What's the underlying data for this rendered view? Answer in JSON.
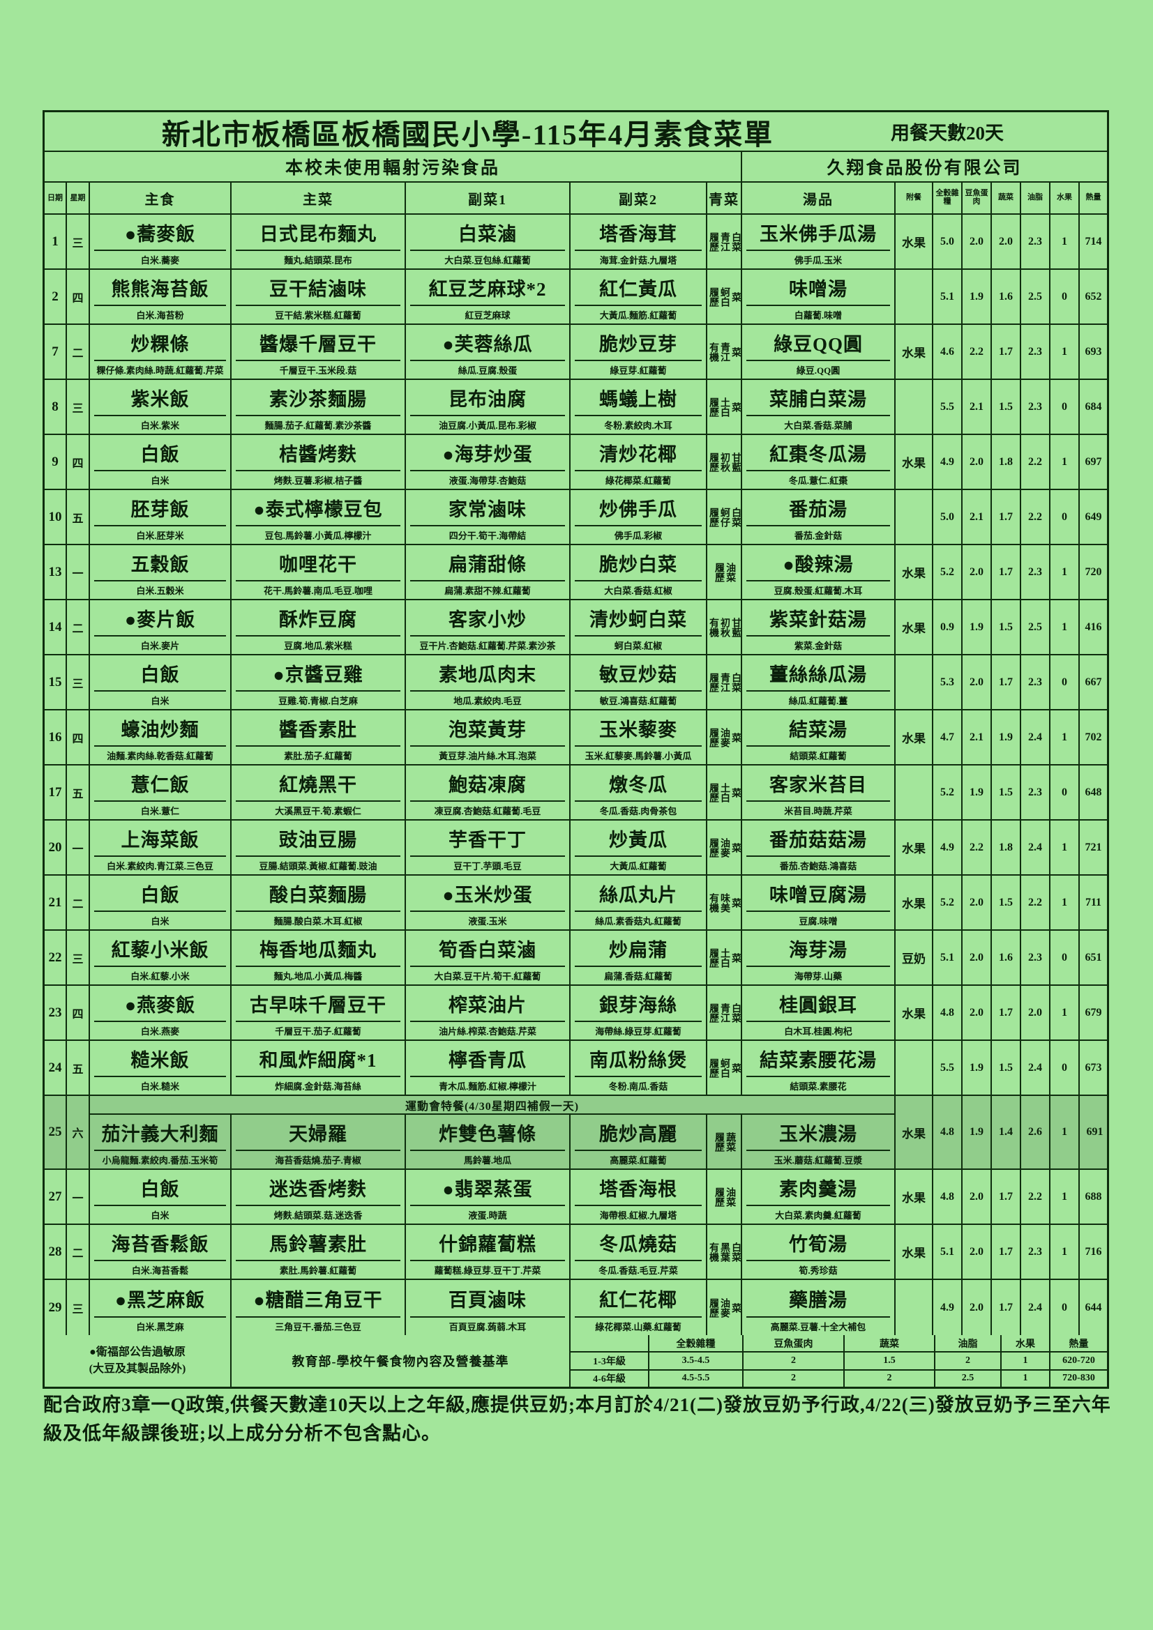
{
  "page": {
    "title": "新北市板橋區板橋國民小學-115年4月素食菜單",
    "meal_days": "用餐天數20天",
    "no_radiation": "本校未使用輻射污染食品",
    "supplier": "久翔食品股份有限公司"
  },
  "columns": [
    "日期",
    "星期",
    "主食",
    "主菜",
    "副菜1",
    "副菜2",
    "青菜",
    "湯品",
    "附餐",
    "全穀雜糧",
    "豆魚蛋肉",
    "蔬菜",
    "油脂",
    "水果",
    "熱量"
  ],
  "special_banner": "運動會特餐(4/30星期四補假一天)",
  "rows": [
    {
      "date": "1",
      "weekday": "三",
      "main": {
        "name": "●蕎麥飯",
        "ing": "白米.蕎麥"
      },
      "dish1": {
        "name": "日式昆布麵丸",
        "ing": "麵丸.結頭菜.昆布"
      },
      "side1": {
        "name": "白菜滷",
        "ing": "大白菜.豆包絲.紅蘿蔔"
      },
      "side2": {
        "name": "塔香海茸",
        "ing": "海茸.金針菇.九層塔"
      },
      "veg": "履歷青江白菜",
      "soup": {
        "name": "玉米佛手瓜湯",
        "ing": "佛手瓜.玉米"
      },
      "extra": "水果",
      "values": [
        "5.0",
        "2.0",
        "2.0",
        "2.3",
        "1"
      ],
      "calories": "714"
    },
    {
      "date": "2",
      "weekday": "四",
      "main": {
        "name": "熊熊海苔飯",
        "ing": "白米.海苔粉"
      },
      "dish1": {
        "name": "豆干結滷味",
        "ing": "豆干結.紫米糕.紅蘿蔔"
      },
      "side1": {
        "name": "紅豆芝麻球*2",
        "ing": "紅豆芝麻球"
      },
      "side2": {
        "name": "紅仁黃瓜",
        "ing": "大黃瓜.麵筋.紅蘿蔔"
      },
      "veg": "履歷蚵白菜",
      "soup": {
        "name": "味噌湯",
        "ing": "白蘿蔔.味噌"
      },
      "extra": "",
      "values": [
        "5.1",
        "1.9",
        "1.6",
        "2.5",
        "0"
      ],
      "calories": "652"
    },
    {
      "date": "7",
      "weekday": "二",
      "main": {
        "name": "炒粿條",
        "ing": "粿仔條.素肉絲.時蔬.紅蘿蔔.芹菜"
      },
      "dish1": {
        "name": "醬爆千層豆干",
        "ing": "千層豆干.玉米段.菇"
      },
      "side1": {
        "name": "●芙蓉絲瓜",
        "ing": "絲瓜.豆腐.殼蛋"
      },
      "side2": {
        "name": "脆炒豆芽",
        "ing": "綠豆芽.紅蘿蔔"
      },
      "veg": "有機青江菜",
      "soup": {
        "name": "綠豆QQ圓",
        "ing": "綠豆.QQ圓"
      },
      "extra": "水果",
      "values": [
        "4.6",
        "2.2",
        "1.7",
        "2.3",
        "1"
      ],
      "calories": "693"
    },
    {
      "date": "8",
      "weekday": "三",
      "main": {
        "name": "紫米飯",
        "ing": "白米.紫米"
      },
      "dish1": {
        "name": "素沙茶麵腸",
        "ing": "麵腸.茄子.紅蘿蔔.素沙茶醬"
      },
      "side1": {
        "name": "昆布油腐",
        "ing": "油豆腐.小黃瓜.昆布.彩椒"
      },
      "side2": {
        "name": "螞蟻上樹",
        "ing": "冬粉.素絞肉.木耳"
      },
      "veg": "履歷土白菜",
      "soup": {
        "name": "菜脯白菜湯",
        "ing": "大白菜.香菇.菜脯"
      },
      "extra": "",
      "values": [
        "5.5",
        "2.1",
        "1.5",
        "2.3",
        "0"
      ],
      "calories": "684"
    },
    {
      "date": "9",
      "weekday": "四",
      "main": {
        "name": "白飯",
        "ing": "白米"
      },
      "dish1": {
        "name": "桔醬烤麩",
        "ing": "烤麩.豆薯.彩椒.桔子醬"
      },
      "side1": {
        "name": "●海芽炒蛋",
        "ing": "液蛋.海帶芽.杏鮑菇"
      },
      "side2": {
        "name": "清炒花椰",
        "ing": "綠花椰菜.紅蘿蔔"
      },
      "veg": "履歷初秋甘藍",
      "soup": {
        "name": "紅棗冬瓜湯",
        "ing": "冬瓜.薏仁.紅棗"
      },
      "extra": "水果",
      "values": [
        "4.9",
        "2.0",
        "1.8",
        "2.2",
        "1"
      ],
      "calories": "697"
    },
    {
      "date": "10",
      "weekday": "五",
      "main": {
        "name": "胚芽飯",
        "ing": "白米.胚芽米"
      },
      "dish1": {
        "name": "●泰式檸檬豆包",
        "ing": "豆包.馬鈴薯.小黃瓜.檸檬汁"
      },
      "side1": {
        "name": "家常滷味",
        "ing": "四分干.筍干.海帶結"
      },
      "side2": {
        "name": "炒佛手瓜",
        "ing": "佛手瓜.彩椒"
      },
      "veg": "履歷蚵仔白菜",
      "soup": {
        "name": "番茄湯",
        "ing": "番茄.金針菇"
      },
      "extra": "",
      "values": [
        "5.0",
        "2.1",
        "1.7",
        "2.2",
        "0"
      ],
      "calories": "649"
    },
    {
      "date": "13",
      "weekday": "一",
      "main": {
        "name": "五穀飯",
        "ing": "白米.五穀米"
      },
      "dish1": {
        "name": "咖哩花干",
        "ing": "花干.馬鈴薯.南瓜.毛豆.咖哩"
      },
      "side1": {
        "name": "扁蒲甜條",
        "ing": "扁蒲.素甜不辣.紅蘿蔔"
      },
      "side2": {
        "name": "脆炒白菜",
        "ing": "大白菜.香菇.紅椒"
      },
      "veg": "履歷油菜",
      "soup": {
        "name": "●酸辣湯",
        "ing": "豆腐.殼蛋.紅蘿蔔.木耳"
      },
      "extra": "水果",
      "values": [
        "5.2",
        "2.0",
        "1.7",
        "2.3",
        "1"
      ],
      "calories": "720"
    },
    {
      "date": "14",
      "weekday": "二",
      "main": {
        "name": "●麥片飯",
        "ing": "白米.麥片"
      },
      "dish1": {
        "name": "酥炸豆腐",
        "ing": "豆腐.地瓜.紫米糕"
      },
      "side1": {
        "name": "客家小炒",
        "ing": "豆干片.杏鮑菇.紅蘿蔔.芹菜.素沙茶"
      },
      "side2": {
        "name": "清炒蚵白菜",
        "ing": "蚵白菜.紅椒"
      },
      "veg": "有機初秋甘藍",
      "soup": {
        "name": "紫菜針菇湯",
        "ing": "紫菜.金針菇"
      },
      "extra": "水果",
      "values": [
        "0.9",
        "1.9",
        "1.5",
        "2.5",
        "1"
      ],
      "calories": "416"
    },
    {
      "date": "15",
      "weekday": "三",
      "main": {
        "name": "白飯",
        "ing": "白米"
      },
      "dish1": {
        "name": "●京醬豆雞",
        "ing": "豆雞.筍.青椒.白芝麻"
      },
      "side1": {
        "name": "素地瓜肉末",
        "ing": "地瓜.素絞肉.毛豆"
      },
      "side2": {
        "name": "敏豆炒菇",
        "ing": "敏豆.鴻喜菇.紅蘿蔔"
      },
      "veg": "履歷青江白菜",
      "soup": {
        "name": "薑絲絲瓜湯",
        "ing": "絲瓜.紅蘿蔔.薑"
      },
      "extra": "",
      "values": [
        "5.3",
        "2.0",
        "1.7",
        "2.3",
        "0"
      ],
      "calories": "667"
    },
    {
      "date": "16",
      "weekday": "四",
      "main": {
        "name": "蠔油炒麵",
        "ing": "油麵.素肉絲.乾香菇.紅蘿蔔"
      },
      "dish1": {
        "name": "醬香素肚",
        "ing": "素肚.茄子.紅蘿蔔"
      },
      "side1": {
        "name": "泡菜黃芽",
        "ing": "黃豆芽.油片絲.木耳.泡菜"
      },
      "side2": {
        "name": "玉米藜麥",
        "ing": "玉米.紅藜麥.馬鈴薯.小黃瓜"
      },
      "veg": "履歷油麥菜",
      "soup": {
        "name": "結菜湯",
        "ing": "結頭菜.紅蘿蔔"
      },
      "extra": "水果",
      "values": [
        "4.7",
        "2.1",
        "1.9",
        "2.4",
        "1"
      ],
      "calories": "702"
    },
    {
      "date": "17",
      "weekday": "五",
      "main": {
        "name": "薏仁飯",
        "ing": "白米.薏仁"
      },
      "dish1": {
        "name": "紅燒黑干",
        "ing": "大溪黑豆干.筍.素蝦仁"
      },
      "side1": {
        "name": "鮑菇凍腐",
        "ing": "凍豆腐.杏鮑菇.紅蘿蔔.毛豆"
      },
      "side2": {
        "name": "燉冬瓜",
        "ing": "冬瓜.香菇.肉骨茶包"
      },
      "veg": "履歷土白菜",
      "soup": {
        "name": "客家米苔目",
        "ing": "米苔目.時蔬.芹菜"
      },
      "extra": "",
      "values": [
        "5.2",
        "1.9",
        "1.5",
        "2.3",
        "0"
      ],
      "calories": "648"
    },
    {
      "date": "20",
      "weekday": "一",
      "main": {
        "name": "上海菜飯",
        "ing": "白米.素絞肉.青江菜.三色豆"
      },
      "dish1": {
        "name": "豉油豆腸",
        "ing": "豆腸.結頭菜.黃椒.紅蘿蔔.豉油"
      },
      "side1": {
        "name": "芋香干丁",
        "ing": "豆干丁.芋頭.毛豆"
      },
      "side2": {
        "name": "炒黃瓜",
        "ing": "大黃瓜.紅蘿蔔"
      },
      "veg": "履歷油麥菜",
      "soup": {
        "name": "番茄菇菇湯",
        "ing": "番茄.杏鮑菇.鴻喜菇"
      },
      "extra": "水果",
      "values": [
        "4.9",
        "2.2",
        "1.8",
        "2.4",
        "1"
      ],
      "calories": "721"
    },
    {
      "date": "21",
      "weekday": "二",
      "main": {
        "name": "白飯",
        "ing": "白米"
      },
      "dish1": {
        "name": "酸白菜麵腸",
        "ing": "麵腸.酸白菜.木耳.紅椒"
      },
      "side1": {
        "name": "●玉米炒蛋",
        "ing": "液蛋.玉米"
      },
      "side2": {
        "name": "絲瓜丸片",
        "ing": "絲瓜.素香菇丸.紅蘿蔔"
      },
      "veg": "有機味美菜",
      "soup": {
        "name": "味噌豆腐湯",
        "ing": "豆腐.味噌"
      },
      "extra": "水果",
      "values": [
        "5.2",
        "2.0",
        "1.5",
        "2.2",
        "1"
      ],
      "calories": "711"
    },
    {
      "date": "22",
      "weekday": "三",
      "main": {
        "name": "紅藜小米飯",
        "ing": "白米.紅藜.小米"
      },
      "dish1": {
        "name": "梅香地瓜麵丸",
        "ing": "麵丸.地瓜.小黃瓜.梅醬"
      },
      "side1": {
        "name": "筍香白菜滷",
        "ing": "大白菜.豆干片.筍干.紅蘿蔔"
      },
      "side2": {
        "name": "炒扁蒲",
        "ing": "扁蒲.香菇.紅蘿蔔"
      },
      "veg": "履歷土白菜",
      "soup": {
        "name": "海芽湯",
        "ing": "海帶芽.山藥"
      },
      "extra": "豆奶",
      "values": [
        "5.1",
        "2.0",
        "1.6",
        "2.3",
        "0"
      ],
      "calories": "651"
    },
    {
      "date": "23",
      "weekday": "四",
      "main": {
        "name": "●燕麥飯",
        "ing": "白米.燕麥"
      },
      "dish1": {
        "name": "古早味千層豆干",
        "ing": "千層豆干.茄子.紅蘿蔔"
      },
      "side1": {
        "name": "榨菜油片",
        "ing": "油片絲.榨菜.杏鮑菇.芹菜"
      },
      "side2": {
        "name": "銀芽海絲",
        "ing": "海帶絲.綠豆芽.紅蘿蔔"
      },
      "veg": "履歷青江白菜",
      "soup": {
        "name": "桂圓銀耳",
        "ing": "白木耳.桂圓.枸杞"
      },
      "extra": "水果",
      "values": [
        "4.8",
        "2.0",
        "1.7",
        "2.0",
        "1"
      ],
      "calories": "679"
    },
    {
      "date": "24",
      "weekday": "五",
      "main": {
        "name": "糙米飯",
        "ing": "白米.糙米"
      },
      "dish1": {
        "name": "和風炸細腐*1",
        "ing": "炸細腐.金針菇.海苔絲"
      },
      "side1": {
        "name": "檸香青瓜",
        "ing": "青木瓜.麵筋.紅椒.檸檬汁"
      },
      "side2": {
        "name": "南瓜粉絲煲",
        "ing": "冬粉.南瓜.香菇"
      },
      "veg": "履歷蚵白菜",
      "soup": {
        "name": "結菜素腰花湯",
        "ing": "結頭菜.素腰花"
      },
      "extra": "",
      "values": [
        "5.5",
        "1.9",
        "1.5",
        "2.4",
        "0"
      ],
      "calories": "673"
    },
    {
      "special": true,
      "date": "25",
      "weekday": "六",
      "main": {
        "name": "茄汁義大利麵",
        "ing": "小烏龍麵.素絞肉.番茄.玉米筍"
      },
      "dish1": {
        "name": "天婦羅",
        "ing": "海苔香菇燒.茄子.青椒"
      },
      "side1": {
        "name": "炸雙色薯條",
        "ing": "馬鈴薯.地瓜"
      },
      "side2": {
        "name": "脆炒高麗",
        "ing": "高麗菜.紅蘿蔔"
      },
      "veg": "履歷蔬菜",
      "soup": {
        "name": "玉米濃湯",
        "ing": "玉米.蘑菇.紅蘿蔔.豆漿"
      },
      "extra": "水果",
      "values": [
        "4.8",
        "1.9",
        "1.4",
        "2.6",
        "1"
      ],
      "calories": "691"
    },
    {
      "date": "27",
      "weekday": "一",
      "main": {
        "name": "白飯",
        "ing": "白米"
      },
      "dish1": {
        "name": "迷迭香烤麩",
        "ing": "烤麩.結頭菜.菇.迷迭香"
      },
      "side1": {
        "name": "●翡翠蒸蛋",
        "ing": "液蛋.時蔬"
      },
      "side2": {
        "name": "塔香海根",
        "ing": "海帶根.紅椒.九層塔"
      },
      "veg": "履歷油菜",
      "soup": {
        "name": "素肉羹湯",
        "ing": "大白菜.素肉羹.紅蘿蔔"
      },
      "extra": "水果",
      "values": [
        "4.8",
        "2.0",
        "1.7",
        "2.2",
        "1"
      ],
      "calories": "688"
    },
    {
      "date": "28",
      "weekday": "二",
      "main": {
        "name": "海苔香鬆飯",
        "ing": "白米.海苔香鬆"
      },
      "dish1": {
        "name": "馬鈴薯素肚",
        "ing": "素肚.馬鈴薯.紅蘿蔔"
      },
      "side1": {
        "name": "什錦蘿蔔糕",
        "ing": "蘿蔔糕.綠豆芽.豆干丁.芹菜"
      },
      "side2": {
        "name": "冬瓜燒菇",
        "ing": "冬瓜.香菇.毛豆.芹菜"
      },
      "veg": "有機黑葉白菜",
      "soup": {
        "name": "竹筍湯",
        "ing": "筍.秀珍菇"
      },
      "extra": "水果",
      "values": [
        "5.1",
        "2.0",
        "1.7",
        "2.3",
        "1"
      ],
      "calories": "716"
    },
    {
      "date": "29",
      "weekday": "三",
      "main": {
        "name": "●黑芝麻飯",
        "ing": "白米.黑芝麻"
      },
      "dish1": {
        "name": "●糖醋三角豆干",
        "ing": "三角豆干.番茄.三色豆"
      },
      "side1": {
        "name": "百頁滷味",
        "ing": "百頁豆腐.蒟蒻.木耳"
      },
      "side2": {
        "name": "紅仁花椰",
        "ing": "綠花椰菜.山藥.紅蘿蔔"
      },
      "veg": "履歷油麥菜",
      "soup": {
        "name": "藥膳湯",
        "ing": "高麗菜.豆薯.十全大補包"
      },
      "extra": "",
      "values": [
        "4.9",
        "2.0",
        "1.7",
        "2.4",
        "0"
      ],
      "calories": "644"
    }
  ],
  "footer": {
    "allergen_1": "●衛福部公告過敏原",
    "allergen_2": "(大豆及其製品除外)",
    "basis": "教育部-學校午餐食物內容及營養基準",
    "headers": [
      "全穀雜糧",
      "豆魚蛋肉",
      "蔬菜",
      "油脂",
      "水果",
      "熱量"
    ],
    "rows": [
      {
        "label": "1-3年級",
        "values": [
          "3.5-4.5",
          "2",
          "1.5",
          "2",
          "1",
          "620-720"
        ]
      },
      {
        "label": "4-6年級",
        "values": [
          "4.5-5.5",
          "2",
          "2",
          "2.5",
          "1",
          "720-830"
        ]
      }
    ]
  },
  "note": "配合政府3章一Q政策,供餐天數達10天以上之年級,應提供豆奶;本月訂於4/21(二)發放豆奶予行政,4/22(三)發放豆奶予三至六年級及低年級課後班;以上成分分析不包含點心。"
}
